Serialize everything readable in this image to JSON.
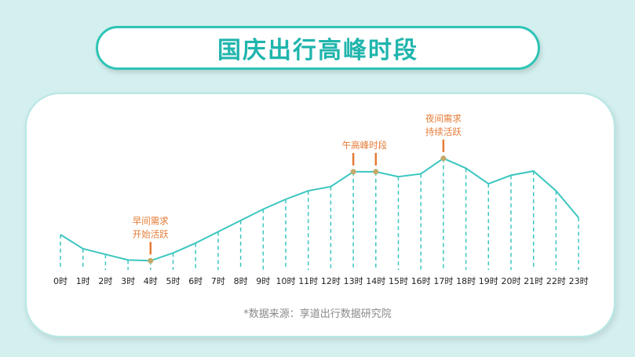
{
  "page": {
    "title": "国庆出行高峰时段",
    "source": "*数据来源：享道出行数据研究院"
  },
  "colors": {
    "line": "#3cc6c0",
    "annotation": "#e57b36",
    "marker": "#c4a96a",
    "tick_text": "#222222"
  },
  "chart_data": {
    "type": "line",
    "title": "国庆出行高峰时段",
    "xlabel": "",
    "ylabel": "",
    "categories": [
      "0时",
      "1时",
      "2时",
      "3时",
      "4时",
      "5时",
      "6时",
      "7时",
      "8时",
      "9时",
      "10时",
      "11时",
      "12时",
      "13时",
      "14时",
      "15时",
      "16时",
      "17时",
      "18时",
      "19时",
      "20时",
      "21时",
      "22时",
      "23时"
    ],
    "values": [
      25,
      15,
      11,
      7,
      6.5,
      12,
      19,
      27,
      35,
      43,
      50,
      56,
      59,
      69.5,
      69.5,
      66,
      68,
      79,
      72,
      61,
      67,
      70,
      56,
      37
    ],
    "ylim": [
      0,
      100
    ],
    "grid": false,
    "annotations": [
      {
        "index": 4,
        "lines": [
          "早间需求",
          "开始活跃"
        ]
      },
      {
        "index": 13.5,
        "lines": [
          "午高峰时段"
        ]
      },
      {
        "index": 17,
        "lines": [
          "夜间需求",
          "持续活跃"
        ]
      }
    ],
    "markers": [
      4,
      13,
      14,
      17
    ]
  }
}
